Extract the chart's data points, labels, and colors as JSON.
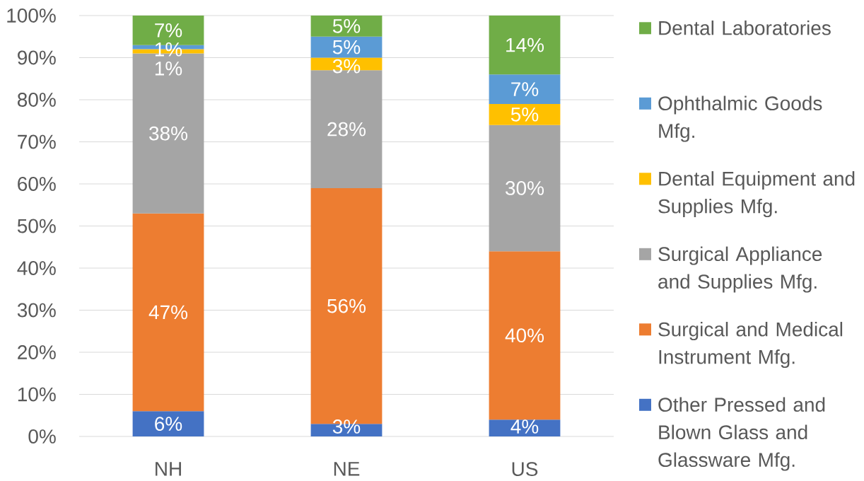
{
  "chart_data": {
    "type": "bar",
    "stacked": true,
    "categories": [
      "NH",
      "NE",
      "US"
    ],
    "series": [
      {
        "name": "Other Pressed and Blown Glass and Glassware Mfg.",
        "color": "#4472c4",
        "values": [
          6,
          3,
          4
        ],
        "value_labels": [
          "6%",
          "3%",
          "4%"
        ]
      },
      {
        "name": "Surgical and Medical Instrument Mfg.",
        "color": "#ed7d31",
        "values": [
          47,
          56,
          40
        ],
        "value_labels": [
          "47%",
          "56%",
          "40%"
        ]
      },
      {
        "name": "Surgical Appliance and Supplies Mfg.",
        "color": "#a5a5a5",
        "values": [
          38,
          28,
          30
        ],
        "value_labels": [
          "38%",
          "28%",
          "30%"
        ]
      },
      {
        "name": "Dental Equipment and Supplies Mfg.",
        "color": "#ffc000",
        "values": [
          1,
          3,
          5
        ],
        "value_labels": [
          "1%",
          "3%",
          "5%"
        ]
      },
      {
        "name": "Ophthalmic Goods Mfg.",
        "color": "#5b9bd5",
        "values": [
          1,
          5,
          7
        ],
        "value_labels": [
          "1%",
          "5%",
          "7%"
        ]
      },
      {
        "name": "Dental Laboratories",
        "color": "#70ad47",
        "values": [
          7,
          5,
          14
        ],
        "value_labels": [
          "7%",
          "5%",
          "14%"
        ]
      }
    ],
    "ylim": [
      0,
      100
    ],
    "yticks": [
      {
        "value": 0,
        "label": "0%"
      },
      {
        "value": 10,
        "label": "10%"
      },
      {
        "value": 20,
        "label": "20%"
      },
      {
        "value": 30,
        "label": "30%"
      },
      {
        "value": 40,
        "label": "40%"
      },
      {
        "value": 50,
        "label": "50%"
      },
      {
        "value": 60,
        "label": "60%"
      },
      {
        "value": 70,
        "label": "70%"
      },
      {
        "value": 80,
        "label": "80%"
      },
      {
        "value": 90,
        "label": "90%"
      },
      {
        "value": 100,
        "label": "100%"
      }
    ],
    "grid": "y",
    "legend": "right"
  }
}
